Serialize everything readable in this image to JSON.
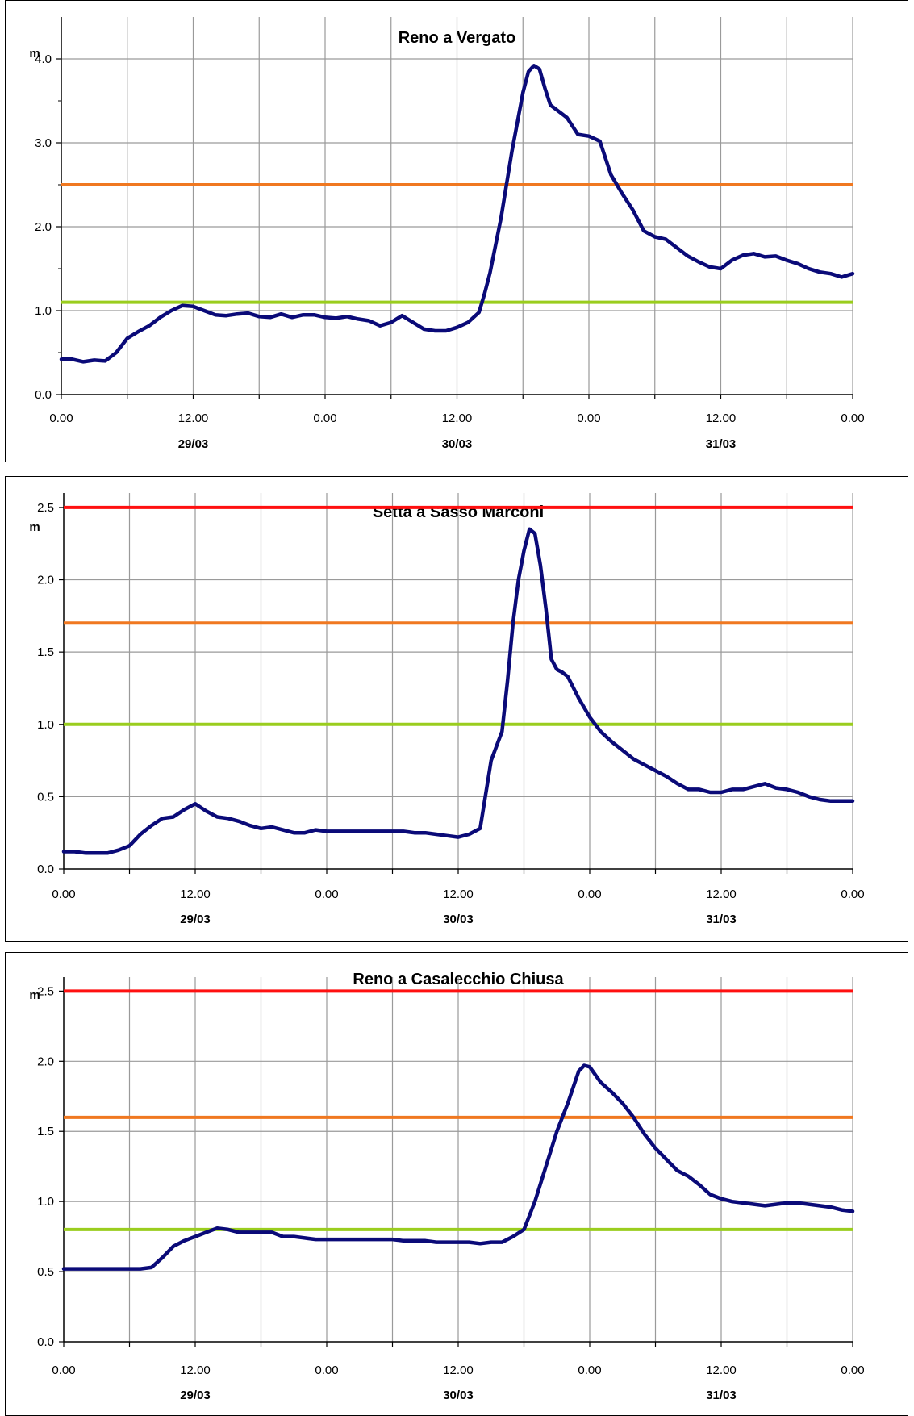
{
  "chart_data": [
    {
      "type": "line",
      "title": "Reno a Vergato",
      "ylabel": "m",
      "ylim": [
        0,
        4.5
      ],
      "yticks": [
        "0.0",
        "1.0",
        "2.0",
        "3.0",
        "4.0"
      ],
      "ytick_values": [
        0,
        1,
        2,
        3,
        4
      ],
      "xlim": [
        0,
        72
      ],
      "xticks": [
        "0.00",
        "12.00",
        "0.00",
        "12.00",
        "0.00",
        "12.00",
        "0.00"
      ],
      "xtick_values": [
        0,
        12,
        24,
        36,
        48,
        60,
        72
      ],
      "date_labels": [
        "29/03",
        "30/03",
        "31/03"
      ],
      "date_label_positions": [
        12,
        36,
        60
      ],
      "grid": true,
      "thresholds": [
        {
          "value": 2.5,
          "color": "#f07820"
        },
        {
          "value": 1.1,
          "color": "#9acd1e"
        }
      ],
      "series": [
        {
          "color": "#0a0a78",
          "x": [
            0,
            1,
            2,
            3,
            4,
            5,
            6,
            7,
            8,
            9,
            10,
            11,
            12,
            13,
            14,
            15,
            16,
            17,
            18,
            19,
            20,
            21,
            22,
            23,
            24,
            25,
            26,
            27,
            28,
            29,
            30,
            31,
            32,
            33,
            34,
            35,
            36,
            37,
            38,
            38.5,
            39,
            40,
            41,
            42,
            42.5,
            43,
            43.5,
            44,
            44.5,
            45,
            46,
            47,
            48,
            49,
            50,
            51,
            52,
            53,
            54,
            55,
            56,
            57,
            58,
            59,
            60,
            61,
            62,
            63,
            64,
            65,
            66,
            67,
            68,
            69,
            70,
            71,
            72
          ],
          "y": [
            0.42,
            0.42,
            0.39,
            0.41,
            0.4,
            0.5,
            0.67,
            0.75,
            0.82,
            0.92,
            1.0,
            1.06,
            1.05,
            1.0,
            0.95,
            0.94,
            0.96,
            0.97,
            0.93,
            0.92,
            0.96,
            0.92,
            0.95,
            0.95,
            0.92,
            0.91,
            0.93,
            0.9,
            0.88,
            0.82,
            0.86,
            0.94,
            0.86,
            0.78,
            0.76,
            0.76,
            0.8,
            0.86,
            0.98,
            1.2,
            1.45,
            2.1,
            2.9,
            3.6,
            3.85,
            3.92,
            3.88,
            3.65,
            3.45,
            3.4,
            3.3,
            3.1,
            3.08,
            3.02,
            2.62,
            2.4,
            2.2,
            1.95,
            1.88,
            1.85,
            1.75,
            1.65,
            1.58,
            1.52,
            1.5,
            1.6,
            1.66,
            1.68,
            1.64,
            1.65,
            1.6,
            1.56,
            1.5,
            1.46,
            1.44,
            1.4,
            1.44
          ]
        }
      ]
    },
    {
      "type": "line",
      "title": "Setta a Sasso Marconi",
      "ylabel": "m",
      "ylim": [
        0,
        2.5
      ],
      "yticks": [
        "0.0",
        "0.5",
        "1.0",
        "1.5",
        "2.0",
        "2.5"
      ],
      "ytick_values": [
        0,
        0.5,
        1.0,
        1.5,
        2.0,
        2.5
      ],
      "xlim": [
        0,
        72
      ],
      "xticks": [
        "0.00",
        "12.00",
        "0.00",
        "12.00",
        "0.00",
        "12.00",
        "0.00"
      ],
      "xtick_values": [
        0,
        12,
        24,
        36,
        48,
        60,
        72
      ],
      "date_labels": [
        "29/03",
        "30/03",
        "31/03"
      ],
      "date_label_positions": [
        12,
        36,
        60
      ],
      "grid": true,
      "thresholds": [
        {
          "value": 2.5,
          "color": "#ff1010"
        },
        {
          "value": 1.7,
          "color": "#f07820"
        },
        {
          "value": 1.0,
          "color": "#9acd1e"
        }
      ],
      "series": [
        {
          "color": "#0a0a78",
          "x": [
            0,
            1,
            2,
            3,
            4,
            5,
            6,
            7,
            8,
            9,
            10,
            11,
            12,
            13,
            14,
            15,
            16,
            17,
            18,
            19,
            20,
            21,
            22,
            23,
            24,
            25,
            26,
            27,
            28,
            29,
            30,
            31,
            32,
            33,
            34,
            35,
            36,
            37,
            38,
            39,
            40,
            40.5,
            41,
            41.5,
            42,
            42.5,
            43,
            43.5,
            44,
            44.5,
            45,
            45.5,
            46,
            47,
            48,
            49,
            50,
            51,
            52,
            53,
            54,
            55,
            56,
            57,
            58,
            59,
            60,
            61,
            62,
            63,
            64,
            65,
            66,
            67,
            68,
            69,
            70,
            71,
            72
          ],
          "y": [
            0.12,
            0.12,
            0.11,
            0.11,
            0.11,
            0.13,
            0.16,
            0.24,
            0.3,
            0.35,
            0.36,
            0.41,
            0.45,
            0.4,
            0.36,
            0.35,
            0.33,
            0.3,
            0.28,
            0.29,
            0.27,
            0.25,
            0.25,
            0.27,
            0.26,
            0.26,
            0.26,
            0.26,
            0.26,
            0.26,
            0.26,
            0.26,
            0.25,
            0.25,
            0.24,
            0.23,
            0.22,
            0.24,
            0.28,
            0.75,
            0.95,
            1.3,
            1.7,
            2.0,
            2.2,
            2.35,
            2.32,
            2.1,
            1.8,
            1.45,
            1.38,
            1.36,
            1.33,
            1.18,
            1.05,
            0.95,
            0.88,
            0.82,
            0.76,
            0.72,
            0.68,
            0.64,
            0.59,
            0.55,
            0.55,
            0.53,
            0.53,
            0.55,
            0.55,
            0.57,
            0.59,
            0.56,
            0.55,
            0.53,
            0.5,
            0.48,
            0.47,
            0.47,
            0.47
          ]
        }
      ]
    },
    {
      "type": "line",
      "title": "Reno a Casalecchio Chiusa",
      "ylabel": "m",
      "ylim": [
        0,
        2.5
      ],
      "yticks": [
        "0.0",
        "0.5",
        "1.0",
        "1.5",
        "2.0",
        "2.5"
      ],
      "ytick_values": [
        0,
        0.5,
        1.0,
        1.5,
        2.0,
        2.5
      ],
      "xlim": [
        0,
        72
      ],
      "xticks": [
        "0.00",
        "12.00",
        "0.00",
        "12.00",
        "0.00",
        "12.00",
        "0.00"
      ],
      "xtick_values": [
        0,
        12,
        24,
        36,
        48,
        60,
        72
      ],
      "date_labels": [
        "29/03",
        "30/03",
        "31/03"
      ],
      "date_label_positions": [
        12,
        36,
        60
      ],
      "grid": true,
      "thresholds": [
        {
          "value": 2.5,
          "color": "#ff1010"
        },
        {
          "value": 1.6,
          "color": "#f07820"
        },
        {
          "value": 0.8,
          "color": "#9acd1e"
        }
      ],
      "series": [
        {
          "color": "#0a0a78",
          "x": [
            0,
            2,
            4,
            6,
            7,
            8,
            9,
            10,
            11,
            12,
            13,
            14,
            15,
            16,
            17,
            18,
            19,
            20,
            21,
            22,
            23,
            24,
            25,
            26,
            27,
            28,
            29,
            30,
            31,
            32,
            33,
            34,
            35,
            36,
            37,
            38,
            39,
            40,
            41,
            42,
            43,
            44,
            45,
            46,
            47,
            47.5,
            48,
            49,
            50,
            51,
            52,
            53,
            54,
            55,
            56,
            57,
            58,
            59,
            60,
            61,
            62,
            63,
            64,
            65,
            66,
            67,
            68,
            69,
            70,
            71,
            72
          ],
          "y": [
            0.52,
            0.52,
            0.52,
            0.52,
            0.52,
            0.53,
            0.6,
            0.68,
            0.72,
            0.75,
            0.78,
            0.81,
            0.8,
            0.78,
            0.78,
            0.78,
            0.78,
            0.75,
            0.75,
            0.74,
            0.73,
            0.73,
            0.73,
            0.73,
            0.73,
            0.73,
            0.73,
            0.73,
            0.72,
            0.72,
            0.72,
            0.71,
            0.71,
            0.71,
            0.71,
            0.7,
            0.71,
            0.71,
            0.75,
            0.8,
            1.0,
            1.25,
            1.5,
            1.7,
            1.93,
            1.97,
            1.96,
            1.85,
            1.78,
            1.7,
            1.6,
            1.48,
            1.38,
            1.3,
            1.22,
            1.18,
            1.12,
            1.05,
            1.02,
            1.0,
            0.99,
            0.98,
            0.97,
            0.98,
            0.99,
            0.99,
            0.98,
            0.97,
            0.96,
            0.94,
            0.93
          ]
        }
      ]
    }
  ]
}
